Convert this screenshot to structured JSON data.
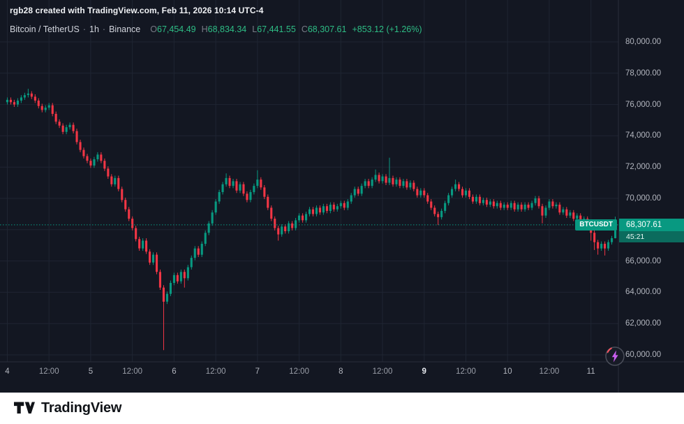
{
  "attribution": "rgb28 created with TradingView.com, Feb 11, 2026 10:14 UTC-4",
  "legend": {
    "symbol": "Bitcoin / TetherUS",
    "separator": "·",
    "interval": "1h",
    "exchange": "Binance",
    "ohlc": [
      {
        "label": "O",
        "value": "67,454.49"
      },
      {
        "label": "H",
        "value": "68,834.34"
      },
      {
        "label": "L",
        "value": "67,441.55"
      },
      {
        "label": "C",
        "value": "68,307.61"
      }
    ],
    "change": "+853.12 (+1.26%)"
  },
  "price_axis": {
    "labels": [
      {
        "text": "80,000.00",
        "value": 80000
      },
      {
        "text": "78,000.00",
        "value": 78000
      },
      {
        "text": "76,000.00",
        "value": 76000
      },
      {
        "text": "74,000.00",
        "value": 74000
      },
      {
        "text": "72,000.00",
        "value": 72000
      },
      {
        "text": "70,000.00",
        "value": 70000
      },
      {
        "text": "68,000.00",
        "value": 68000
      },
      {
        "text": "66,000.00",
        "value": 66000
      },
      {
        "text": "64,000.00",
        "value": 64000
      },
      {
        "text": "62,000.00",
        "value": 62000
      },
      {
        "text": "60,000.00",
        "value": 60000
      }
    ]
  },
  "time_axis": {
    "labels": [
      {
        "text": "4",
        "index": 0,
        "type": "day",
        "bold": false
      },
      {
        "text": "12:00",
        "index": 12,
        "type": "time",
        "bold": false
      },
      {
        "text": "5",
        "index": 24,
        "type": "day",
        "bold": false
      },
      {
        "text": "12:00",
        "index": 36,
        "type": "time",
        "bold": false
      },
      {
        "text": "6",
        "index": 48,
        "type": "day",
        "bold": false
      },
      {
        "text": "12:00",
        "index": 60,
        "type": "time",
        "bold": false
      },
      {
        "text": "7",
        "index": 72,
        "type": "day",
        "bold": false
      },
      {
        "text": "12:00",
        "index": 84,
        "type": "time",
        "bold": false
      },
      {
        "text": "8",
        "index": 96,
        "type": "day",
        "bold": false
      },
      {
        "text": "12:00",
        "index": 108,
        "type": "time",
        "bold": false
      },
      {
        "text": "9",
        "index": 120,
        "type": "day",
        "bold": true
      },
      {
        "text": "12:00",
        "index": 132,
        "type": "time",
        "bold": false
      },
      {
        "text": "10",
        "index": 144,
        "type": "day",
        "bold": false
      },
      {
        "text": "12:00",
        "index": 156,
        "type": "time",
        "bold": false
      },
      {
        "text": "11",
        "index": 168,
        "type": "day",
        "bold": false
      }
    ]
  },
  "last_price": {
    "tag": "BTCUSDT",
    "display": "68,307.61",
    "countdown": "45:21",
    "value": 68307.61
  },
  "footer": {
    "brand": "TradingView"
  },
  "icons": {
    "flash": "lightning-bolt-icon",
    "logo": "tradingview-logo-icon"
  },
  "colors": {
    "background": "#131722",
    "up": "#089981",
    "down": "#f23645",
    "grid": "#1f2532",
    "separator": "#2a2e39",
    "axis_text": "#b2b5be",
    "legend_value": "#2ebd85",
    "price_line": "#089981",
    "tag_bg": "#089981",
    "countdown_bg": "#0b6b5d",
    "flash_accent": "#c95ef0",
    "flash_ring": "#4a4e5a",
    "flash_arc": "#f7525f",
    "footer_bg": "#ffffff"
  },
  "chart_data": {
    "type": "candlestick",
    "title": "Bitcoin / TetherUS",
    "symbol": "BTCUSDT",
    "interval": "1h",
    "exchange": "Binance",
    "ohlc_current": {
      "open": 67454.49,
      "high": 68834.34,
      "low": 67441.55,
      "close": 68307.61,
      "change": 853.12,
      "change_pct": 1.26
    },
    "y_range": [
      60000,
      80000
    ],
    "y_step": 2000,
    "x_labels": [
      "4",
      "12:00",
      "5",
      "12:00",
      "6",
      "12:00",
      "7",
      "12:00",
      "8",
      "12:00",
      "9",
      "12:00",
      "10",
      "12:00",
      "11"
    ],
    "last_close": 68307.61,
    "candles": [
      [
        76150,
        76450,
        76000,
        76300
      ],
      [
        76300,
        76450,
        76000,
        76150
      ],
      [
        76150,
        76300,
        75850,
        76000
      ],
      [
        76000,
        76400,
        75850,
        76250
      ],
      [
        76250,
        76600,
        76100,
        76450
      ],
      [
        76450,
        76750,
        76300,
        76600
      ],
      [
        76600,
        77000,
        76450,
        76700
      ],
      [
        76700,
        76850,
        76350,
        76500
      ],
      [
        76500,
        76650,
        76100,
        76250
      ],
      [
        76250,
        76400,
        75750,
        75900
      ],
      [
        75900,
        76050,
        75500,
        75650
      ],
      [
        75650,
        75950,
        75500,
        75800
      ],
      [
        75800,
        76100,
        75650,
        75950
      ],
      [
        75950,
        76100,
        75250,
        75400
      ],
      [
        75400,
        75550,
        74750,
        74900
      ],
      [
        74900,
        75050,
        74500,
        74650
      ],
      [
        74650,
        74800,
        74100,
        74250
      ],
      [
        74250,
        74700,
        74100,
        74550
      ],
      [
        74550,
        74850,
        74400,
        74700
      ],
      [
        74700,
        74850,
        74150,
        74300
      ],
      [
        74300,
        74450,
        73450,
        73600
      ],
      [
        73600,
        73750,
        72950,
        73100
      ],
      [
        73100,
        73250,
        72550,
        72700
      ],
      [
        72700,
        72850,
        72250,
        72400
      ],
      [
        72400,
        72550,
        71950,
        72100
      ],
      [
        72100,
        72650,
        71950,
        72500
      ],
      [
        72500,
        72950,
        72350,
        72800
      ],
      [
        72800,
        72950,
        72250,
        72400
      ],
      [
        72400,
        72550,
        71750,
        71900
      ],
      [
        71900,
        72050,
        71250,
        71400
      ],
      [
        71400,
        71550,
        70750,
        70900
      ],
      [
        70900,
        71450,
        70750,
        71300
      ],
      [
        71300,
        71450,
        70450,
        70600
      ],
      [
        70600,
        70750,
        69750,
        69900
      ],
      [
        69900,
        70050,
        69150,
        69300
      ],
      [
        69300,
        69450,
        68550,
        68700
      ],
      [
        68700,
        68850,
        67950,
        68100
      ],
      [
        68100,
        68250,
        67250,
        67400
      ],
      [
        67400,
        67550,
        66650,
        66800
      ],
      [
        66800,
        67450,
        66650,
        67300
      ],
      [
        67300,
        67450,
        66450,
        66600
      ],
      [
        66600,
        66750,
        65750,
        65900
      ],
      [
        65900,
        66550,
        65750,
        66400
      ],
      [
        66400,
        66550,
        65150,
        65300
      ],
      [
        65300,
        65450,
        64150,
        64300
      ],
      [
        64300,
        64450,
        60300,
        63400
      ],
      [
        63400,
        64050,
        63250,
        63900
      ],
      [
        63900,
        64750,
        63750,
        64600
      ],
      [
        64600,
        65250,
        64450,
        65100
      ],
      [
        65100,
        65250,
        64550,
        64700
      ],
      [
        64700,
        65450,
        64550,
        65300
      ],
      [
        65300,
        65450,
        64300,
        64900
      ],
      [
        64900,
        65750,
        64750,
        65600
      ],
      [
        65600,
        66350,
        65450,
        66200
      ],
      [
        66200,
        66950,
        66050,
        66800
      ],
      [
        66800,
        66950,
        66250,
        66400
      ],
      [
        66400,
        67250,
        66250,
        67100
      ],
      [
        67100,
        67950,
        66950,
        67800
      ],
      [
        67800,
        68550,
        67650,
        68400
      ],
      [
        68400,
        69250,
        68250,
        69100
      ],
      [
        69100,
        69950,
        68950,
        69800
      ],
      [
        69800,
        70550,
        69650,
        70400
      ],
      [
        70400,
        71050,
        70250,
        70900
      ],
      [
        70900,
        71600,
        70750,
        71300
      ],
      [
        71300,
        71450,
        70650,
        70800
      ],
      [
        70800,
        71250,
        70650,
        71100
      ],
      [
        71100,
        71250,
        70350,
        70500
      ],
      [
        70500,
        71050,
        70350,
        70900
      ],
      [
        70900,
        71050,
        70150,
        70300
      ],
      [
        70300,
        70450,
        69750,
        69900
      ],
      [
        69900,
        70550,
        69750,
        70400
      ],
      [
        70400,
        70950,
        70250,
        70800
      ],
      [
        70800,
        71800,
        70650,
        71200
      ],
      [
        71200,
        71350,
        70550,
        70700
      ],
      [
        70700,
        70850,
        69950,
        70100
      ],
      [
        70100,
        70250,
        69250,
        69400
      ],
      [
        69400,
        69550,
        68550,
        68700
      ],
      [
        68700,
        68850,
        67950,
        68100
      ],
      [
        68100,
        68250,
        67300,
        67700
      ],
      [
        67700,
        68350,
        67550,
        68200
      ],
      [
        68200,
        68350,
        67750,
        67900
      ],
      [
        67900,
        68550,
        67750,
        68400
      ],
      [
        68400,
        68550,
        67950,
        68100
      ],
      [
        68100,
        68750,
        67950,
        68600
      ],
      [
        68600,
        69050,
        68450,
        68900
      ],
      [
        68900,
        69050,
        68450,
        68600
      ],
      [
        68600,
        69150,
        68450,
        69000
      ],
      [
        69000,
        69450,
        68850,
        69300
      ],
      [
        69300,
        69450,
        68850,
        69000
      ],
      [
        69000,
        69550,
        68850,
        69400
      ],
      [
        69400,
        69550,
        68950,
        69100
      ],
      [
        69100,
        69650,
        68950,
        69500
      ],
      [
        69500,
        69650,
        69050,
        69200
      ],
      [
        69200,
        69750,
        69050,
        69600
      ],
      [
        69600,
        69750,
        69150,
        69300
      ],
      [
        69300,
        69650,
        69150,
        69500
      ],
      [
        69500,
        69850,
        69350,
        69700
      ],
      [
        69700,
        69850,
        69250,
        69400
      ],
      [
        69400,
        69950,
        69250,
        69800
      ],
      [
        69800,
        70350,
        69650,
        70200
      ],
      [
        70200,
        70750,
        70050,
        70600
      ],
      [
        70600,
        70750,
        70150,
        70300
      ],
      [
        70300,
        70950,
        70150,
        70800
      ],
      [
        70800,
        71250,
        70650,
        71100
      ],
      [
        71100,
        71250,
        70650,
        70800
      ],
      [
        70800,
        71350,
        70650,
        71200
      ],
      [
        71200,
        71850,
        71050,
        71500
      ],
      [
        71500,
        71650,
        70950,
        71100
      ],
      [
        71100,
        71550,
        70950,
        71400
      ],
      [
        71400,
        71550,
        70850,
        71000
      ],
      [
        71000,
        72600,
        70850,
        71300
      ],
      [
        71300,
        71450,
        70750,
        70900
      ],
      [
        70900,
        71350,
        70750,
        71200
      ],
      [
        71200,
        71350,
        70650,
        70800
      ],
      [
        70800,
        71250,
        70650,
        71100
      ],
      [
        71100,
        71250,
        70550,
        70700
      ],
      [
        70700,
        71150,
        70550,
        71000
      ],
      [
        71000,
        71150,
        70450,
        70600
      ],
      [
        70600,
        70750,
        70050,
        70200
      ],
      [
        70200,
        70650,
        70050,
        70500
      ],
      [
        70500,
        70650,
        70050,
        70200
      ],
      [
        70200,
        70350,
        69650,
        69800
      ],
      [
        69800,
        69950,
        69250,
        69400
      ],
      [
        69400,
        69550,
        68850,
        69000
      ],
      [
        69000,
        69150,
        68300,
        68800
      ],
      [
        68800,
        69350,
        68650,
        69200
      ],
      [
        69200,
        69850,
        69050,
        69700
      ],
      [
        69700,
        70350,
        69550,
        70200
      ],
      [
        70200,
        70750,
        70050,
        70600
      ],
      [
        70600,
        71200,
        70450,
        70900
      ],
      [
        70900,
        71050,
        70450,
        70600
      ],
      [
        70600,
        70750,
        70050,
        70200
      ],
      [
        70200,
        70650,
        70050,
        70500
      ],
      [
        70500,
        70650,
        69950,
        70100
      ],
      [
        70100,
        70250,
        69650,
        69800
      ],
      [
        69800,
        70250,
        69650,
        70100
      ],
      [
        70100,
        70250,
        69550,
        69700
      ],
      [
        69700,
        70050,
        69550,
        69900
      ],
      [
        69900,
        70050,
        69450,
        69600
      ],
      [
        69600,
        69950,
        69450,
        69800
      ],
      [
        69800,
        69950,
        69350,
        69500
      ],
      [
        69500,
        69850,
        69350,
        69700
      ],
      [
        69700,
        69850,
        69250,
        69400
      ],
      [
        69400,
        69750,
        69250,
        69600
      ],
      [
        69600,
        69750,
        69250,
        69400
      ],
      [
        69400,
        69850,
        69250,
        69700
      ],
      [
        69700,
        69850,
        69150,
        69300
      ],
      [
        69300,
        69750,
        69150,
        69600
      ],
      [
        69600,
        69750,
        69150,
        69300
      ],
      [
        69300,
        69750,
        69150,
        69600
      ],
      [
        69600,
        69750,
        69250,
        69400
      ],
      [
        69400,
        69850,
        69250,
        69700
      ],
      [
        69700,
        70150,
        69550,
        70000
      ],
      [
        70000,
        70150,
        69350,
        69500
      ],
      [
        69500,
        69650,
        68400,
        68900
      ],
      [
        68900,
        69550,
        68750,
        69400
      ],
      [
        69400,
        69950,
        69250,
        69800
      ],
      [
        69800,
        69950,
        69350,
        69500
      ],
      [
        69500,
        69750,
        69350,
        69600
      ],
      [
        69600,
        69750,
        68950,
        69100
      ],
      [
        69100,
        69450,
        68950,
        69300
      ],
      [
        69300,
        69450,
        68750,
        68900
      ],
      [
        68900,
        69250,
        68750,
        69100
      ],
      [
        69100,
        69250,
        68550,
        68700
      ],
      [
        68700,
        69050,
        68550,
        68900
      ],
      [
        68900,
        69050,
        68350,
        68500
      ],
      [
        68500,
        68850,
        68350,
        68700
      ],
      [
        68700,
        68850,
        68150,
        68300
      ],
      [
        68300,
        68450,
        67300,
        67800
      ],
      [
        67800,
        67950,
        66700,
        67200
      ],
      [
        67200,
        67350,
        66400,
        66800
      ],
      [
        66800,
        67250,
        66650,
        67100
      ],
      [
        67100,
        67250,
        66350,
        66800
      ],
      [
        66800,
        67350,
        66650,
        67200
      ],
      [
        67200,
        67600,
        67050,
        67454.49
      ],
      [
        67454.49,
        68834.34,
        67441.55,
        68307.61
      ]
    ]
  }
}
